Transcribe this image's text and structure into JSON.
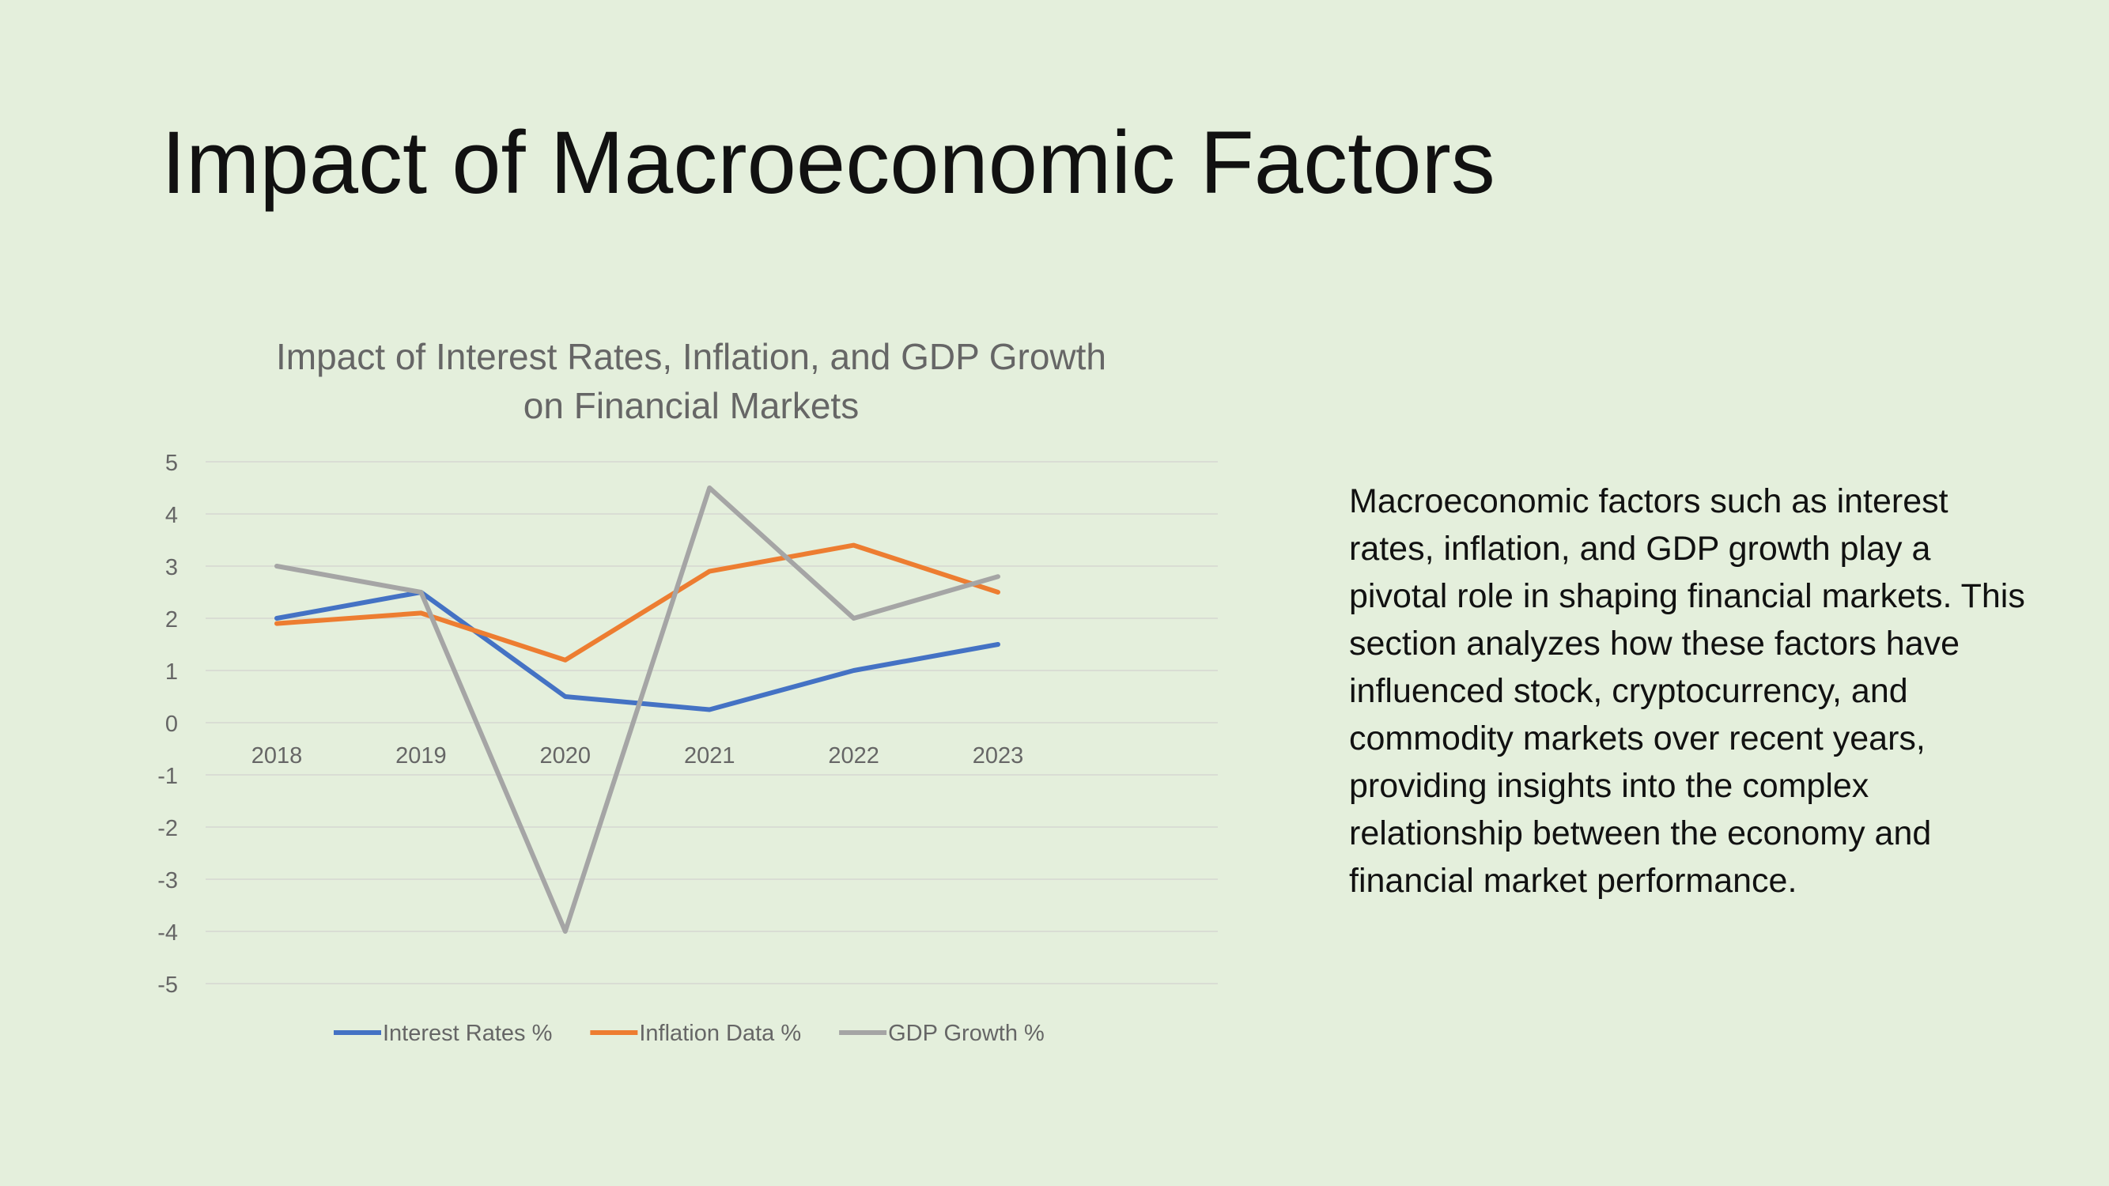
{
  "slide": {
    "title": "Impact of Macroeconomic Factors",
    "body": "Macroeconomic factors such as interest rates, inflation, and GDP growth play a pivotal role in shaping financial markets. This section analyzes how these factors have influenced stock, cryptocurrency, and commodity markets over recent years, providing insights into the complex relationship between the economy and financial market performance."
  },
  "chart_data": {
    "type": "line",
    "title_lines": [
      "Impact of Interest Rates, Inflation, and GDP Growth",
      "on Financial Markets"
    ],
    "categories": [
      "2018",
      "2019",
      "2020",
      "2021",
      "2022",
      "2023"
    ],
    "ylim": [
      -5,
      5
    ],
    "yticks": [
      5,
      4,
      3,
      2,
      1,
      0,
      -1,
      -2,
      -3,
      -4,
      -5
    ],
    "grid": true,
    "legend": "bottom",
    "series": [
      {
        "name": "Interest Rates %",
        "color": "#4472c4",
        "values": [
          2.0,
          2.5,
          0.5,
          0.25,
          1.0,
          1.5
        ]
      },
      {
        "name": "Inflation Data %",
        "color": "#ed7d31",
        "values": [
          1.9,
          2.1,
          1.2,
          2.9,
          3.4,
          2.5
        ]
      },
      {
        "name": "GDP Growth %",
        "color": "#a5a5a5",
        "values": [
          3.0,
          2.5,
          -4.0,
          4.5,
          2.0,
          2.8
        ]
      }
    ]
  }
}
